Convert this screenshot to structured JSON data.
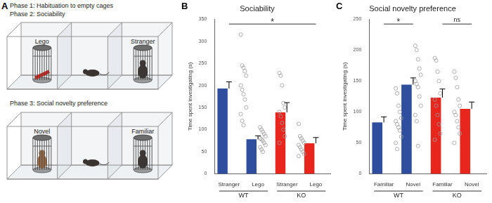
{
  "diagram": {
    "label": "A",
    "phase1": "Phase 1: Habituation to empty cages",
    "phases": [
      {
        "title": "Phase 2: Sociability",
        "left": "Lego",
        "right": "Stranger"
      },
      {
        "title": "Phase 3: Social novelty preference",
        "left": "Novel",
        "right": "Familiar"
      }
    ]
  },
  "chart_data": [
    {
      "label": "B",
      "type": "bar",
      "title": "Sociability",
      "y_label": "Time spent investigating (s)",
      "categories": [
        "Stranger",
        "Lego",
        "Stranger",
        "Lego"
      ],
      "values": [
        193,
        78,
        139,
        69
      ],
      "errors": [
        15,
        8,
        22,
        13
      ],
      "points": [
        [
          315,
          245,
          240,
          232,
          222,
          200,
          190,
          180,
          168,
          150,
          135,
          120,
          110
        ],
        [
          105,
          100,
          95,
          90,
          85,
          80,
          78,
          75,
          70,
          65,
          60,
          55,
          50
        ],
        [
          228,
          222,
          200,
          160,
          150,
          140,
          130,
          115,
          100,
          85,
          70
        ],
        [
          113,
          85,
          80,
          75,
          70,
          65,
          60,
          55,
          50,
          45,
          40
        ]
      ],
      "colors": [
        "#2f4f9e",
        "#2f4f9e",
        "#e8261e",
        "#e8261e"
      ],
      "groups": [
        {
          "label": "WT",
          "categories": [
            0,
            1
          ]
        },
        {
          "label": "KO",
          "categories": [
            2,
            3
          ]
        }
      ],
      "annotations": [
        {
          "from": 0,
          "to": 3,
          "text": "*"
        }
      ],
      "ylim": [
        0,
        350
      ],
      "yticks": [
        0,
        50,
        100,
        150,
        200,
        250,
        300,
        350
      ],
      "grid": false
    },
    {
      "label": "C",
      "type": "bar",
      "title": "Social novelty preference",
      "y_label": "Time spent investigating (s)",
      "categories": [
        "Familiar",
        "Novel",
        "Familiar",
        "Novel"
      ],
      "values": [
        83,
        144,
        123,
        105
      ],
      "errors": [
        9,
        11,
        14,
        11
      ],
      "points": [
        [
          138,
          130,
          110,
          100,
          90,
          85,
          80,
          75,
          70,
          60,
          50,
          40
        ],
        [
          207,
          200,
          185,
          170,
          160,
          150,
          145,
          140,
          125,
          110,
          95,
          85,
          45
        ],
        [
          187,
          183,
          165,
          150,
          130,
          120,
          110,
          95,
          80,
          65,
          55
        ],
        [
          165,
          155,
          140,
          120,
          110,
          100,
          95,
          85,
          75,
          65,
          50
        ]
      ],
      "colors": [
        "#2f4f9e",
        "#2f4f9e",
        "#e8261e",
        "#e8261e"
      ],
      "groups": [
        {
          "label": "WT",
          "categories": [
            0,
            1
          ]
        },
        {
          "label": "KO",
          "categories": [
            2,
            3
          ]
        }
      ],
      "annotations": [
        {
          "from": 0,
          "to": 1,
          "text": "*"
        },
        {
          "from": 2,
          "to": 3,
          "text": "ns"
        }
      ],
      "ylim": [
        0,
        250
      ],
      "yticks": [
        0,
        50,
        100,
        150,
        200,
        250
      ],
      "grid": false
    }
  ]
}
